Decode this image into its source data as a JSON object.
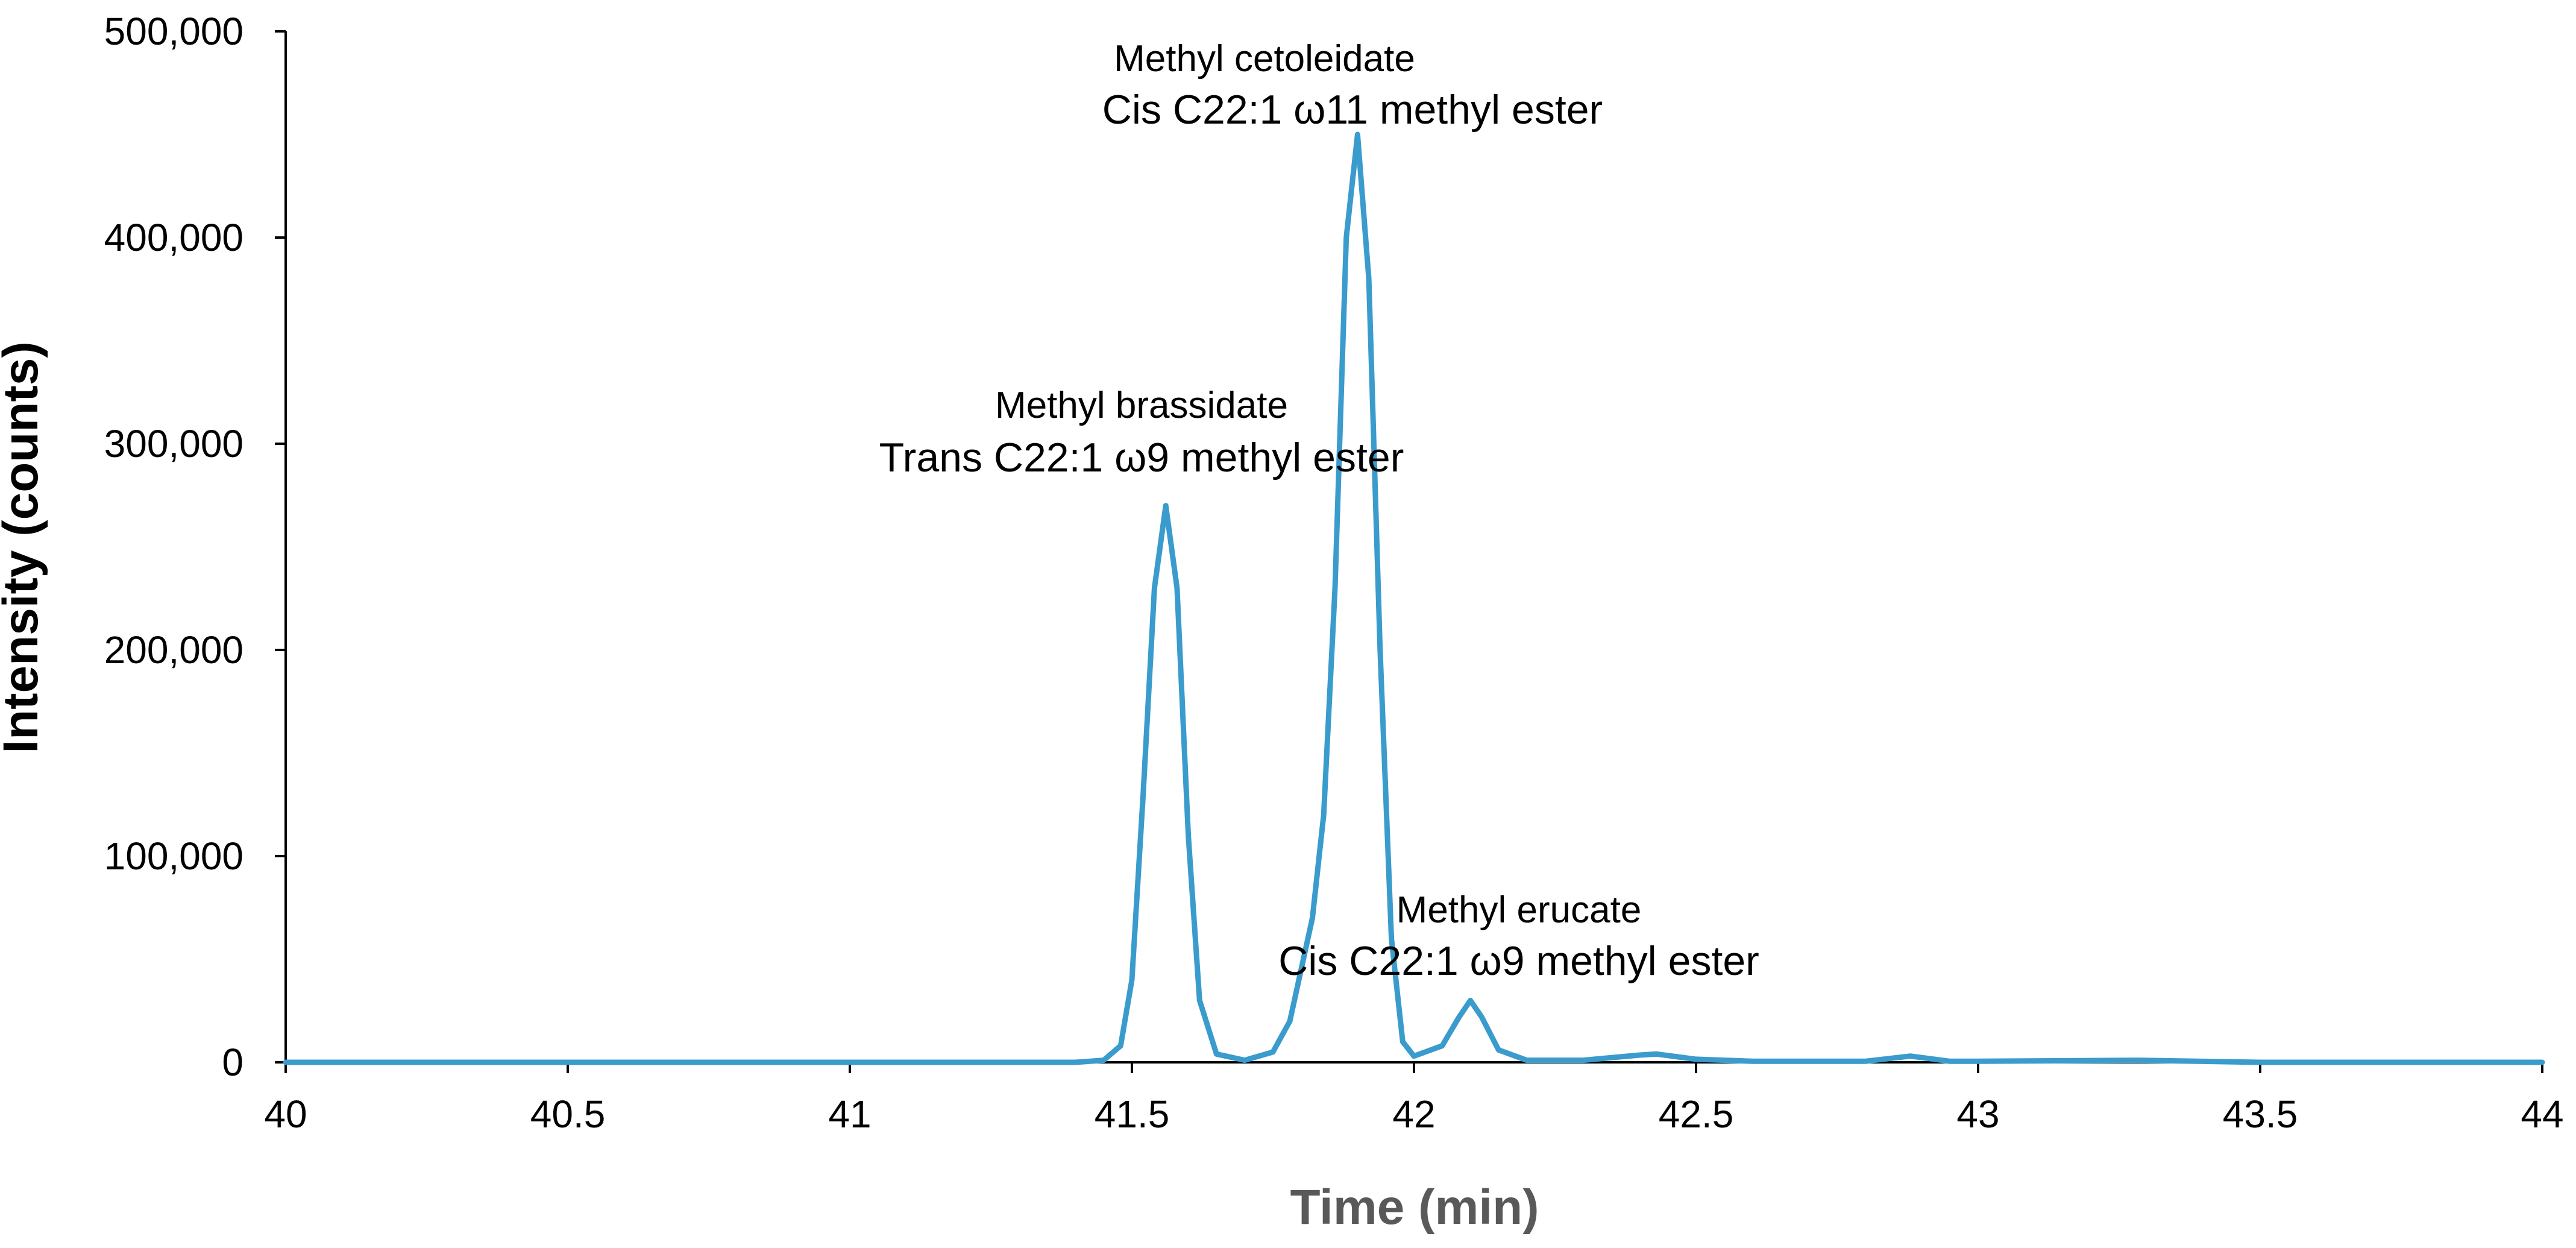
{
  "chart_data": {
    "type": "line",
    "title": "",
    "xlabel": "Time (min)",
    "ylabel": "Intensity (counts)",
    "xlim": [
      40,
      44
    ],
    "ylim": [
      0,
      500000
    ],
    "x_ticks": [
      "40",
      "40.5",
      "41",
      "41.5",
      "42",
      "42.5",
      "43",
      "43.5",
      "44"
    ],
    "y_ticks": [
      "0",
      "100,000",
      "200,000",
      "300,000",
      "400,000",
      "500,000"
    ],
    "grid": false,
    "legend": "none",
    "series_color": "#3A9BCD",
    "axis_title_color": "#595959",
    "series": [
      {
        "x": [
          40.0,
          40.5,
          41.0,
          41.4,
          41.45,
          41.48,
          41.5,
          41.52,
          41.54,
          41.56,
          41.58,
          41.6,
          41.62,
          41.65,
          41.7,
          41.75,
          41.78,
          41.8,
          41.82,
          41.84,
          41.86,
          41.88,
          41.9,
          41.92,
          41.94,
          41.96,
          41.98,
          42.0,
          42.05,
          42.08,
          42.1,
          42.12,
          42.15,
          42.2,
          42.3,
          42.4,
          42.43,
          42.5,
          42.6,
          42.8,
          42.88,
          42.95,
          43.0,
          43.28,
          43.5,
          44.0
        ],
        "y": [
          0,
          0,
          0,
          0,
          1000,
          8000,
          40000,
          130000,
          230000,
          270000,
          230000,
          110000,
          30000,
          4000,
          1000,
          5000,
          20000,
          45000,
          70000,
          120000,
          230000,
          400000,
          450000,
          380000,
          200000,
          60000,
          10000,
          3000,
          8000,
          22000,
          30000,
          22000,
          6000,
          1000,
          1000,
          3500,
          4000,
          1500,
          500,
          500,
          3000,
          500,
          500,
          1000,
          0,
          0
        ]
      }
    ],
    "annotations": [
      {
        "name": "Methyl cetoleidate",
        "formula": "Cis C22:1 ω11 methyl ester",
        "x": 41.9
      },
      {
        "name": "Methyl brassidate",
        "formula": "Trans C22:1 ω9 methyl ester",
        "x": 41.56
      },
      {
        "name": "Methyl erucate",
        "formula": "Cis C22:1 ω9 methyl ester",
        "x": 42.11
      }
    ]
  }
}
